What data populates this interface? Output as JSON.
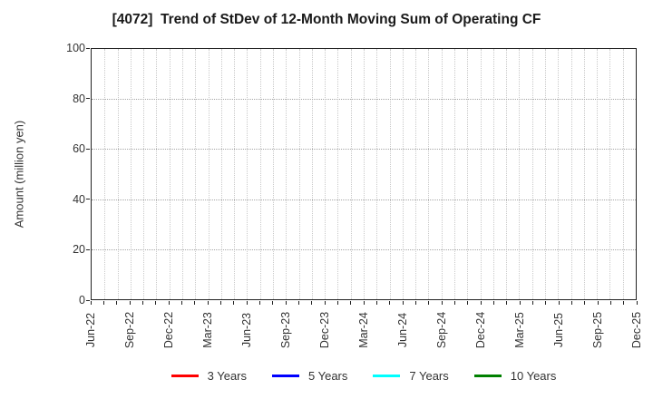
{
  "title": "[4072]  Trend of StDev of 12-Month Moving Sum of Operating CF",
  "y_axis": {
    "label": "Amount (million yen)",
    "min": 0,
    "max": 100,
    "ticks": [
      0,
      20,
      40,
      60,
      80,
      100
    ]
  },
  "x_axis": {
    "tick_labels": [
      "Jun-22",
      "Sep-22",
      "Dec-22",
      "Mar-23",
      "Jun-23",
      "Sep-23",
      "Dec-23",
      "Mar-24",
      "Jun-24",
      "Sep-24",
      "Dec-24",
      "Mar-25",
      "Jun-25",
      "Sep-25",
      "Dec-25"
    ],
    "months_per_label": 3
  },
  "legend": {
    "items": [
      {
        "label": "3 Years",
        "color": "#ff0000"
      },
      {
        "label": "5 Years",
        "color": "#0000ff"
      },
      {
        "label": "7 Years",
        "color": "#00ffff"
      },
      {
        "label": "10 Years",
        "color": "#008000"
      }
    ]
  },
  "chart_data": {
    "type": "line",
    "title": "[4072]  Trend of StDev of 12-Month Moving Sum of Operating CF",
    "xlabel": "",
    "ylabel": "Amount (million yen)",
    "ylim": [
      0,
      100
    ],
    "x": [
      "Jun-22",
      "Sep-22",
      "Dec-22",
      "Mar-23",
      "Jun-23",
      "Sep-23",
      "Dec-23",
      "Mar-24",
      "Jun-24",
      "Sep-24",
      "Dec-24",
      "Mar-25",
      "Jun-25",
      "Sep-25",
      "Dec-25"
    ],
    "grid": "dotted; vertical gridline every month, horizontal gridline every 20 units",
    "legend_position": "bottom center",
    "series": [
      {
        "name": "3 Years",
        "color": "#ff0000",
        "values": []
      },
      {
        "name": "5 Years",
        "color": "#0000ff",
        "values": []
      },
      {
        "name": "7 Years",
        "color": "#00ffff",
        "values": []
      },
      {
        "name": "10 Years",
        "color": "#008000",
        "values": []
      }
    ]
  }
}
